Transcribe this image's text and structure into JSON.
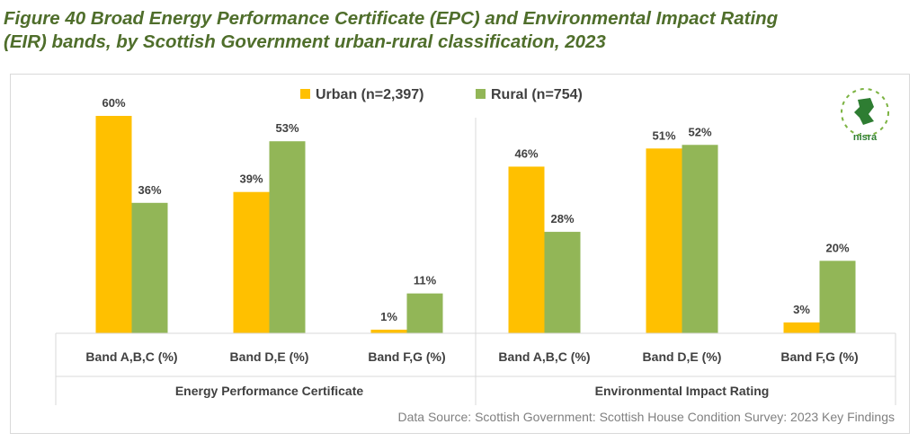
{
  "figure": {
    "title_line1": "Figure 40 Broad Energy Performance Certificate (EPC) and Environmental Impact Rating",
    "title_line2": "(EIR) bands, by Scottish Government urban-rural classification, 2023",
    "source": "Data Source: Scottish Government: Scottish House Condition Survey: 2023 Key Findings",
    "logo_text": "nisra"
  },
  "chart_data": {
    "type": "bar",
    "groups": [
      "Energy Performance Certificate",
      "Environmental Impact Rating"
    ],
    "categories": [
      "Band A,B,C (%)",
      "Band D,E (%)",
      "Band F,G (%)",
      "Band A,B,C (%)",
      "Band D,E (%)",
      "Band F,G (%)"
    ],
    "series": [
      {
        "name": "Urban (n=2,397)",
        "color": "#ffc000",
        "values": [
          60,
          39,
          1,
          46,
          51,
          3
        ],
        "labels": [
          "60%",
          "39%",
          "1%",
          "46%",
          "51%",
          "3%"
        ]
      },
      {
        "name": "Rural (n=754)",
        "color": "#92b657",
        "values": [
          36,
          53,
          11,
          28,
          52,
          20
        ],
        "labels": [
          "36%",
          "53%",
          "11%",
          "28%",
          "52%",
          "20%"
        ]
      }
    ],
    "ylim": [
      0,
      60
    ],
    "legend": "top-center",
    "grid": false
  }
}
